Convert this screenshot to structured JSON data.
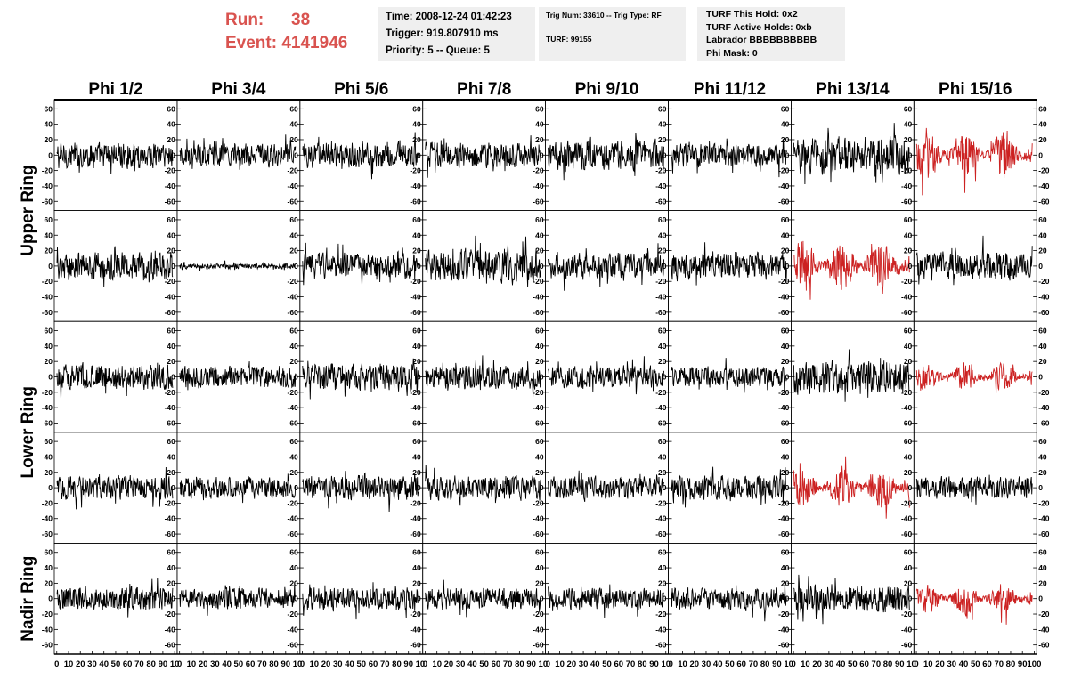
{
  "header": {
    "run_label": "Run:",
    "run_value": "38",
    "event_label": "Event:",
    "event_value": "4141946",
    "time": "Time: 2008-12-24 01:42:23",
    "trigger": "Trigger: 919.807910 ms",
    "priority": "Priority: 5 -- Queue: 5",
    "trig_num": "Trig Num: 33610 -- Trig Type: RF",
    "turf": "TURF: 99155",
    "turf_hold": "TURF This Hold: 0x2",
    "turf_active": "TURF Active Holds: 0xb",
    "labrador": "Labrador BBBBBBBBBB",
    "phi_mask": "Phi Mask: 0"
  },
  "colors": {
    "normal_trace": "#000000",
    "highlight_trace": "#cc2222",
    "header_accent": "#d9534f",
    "info_box": "#efefef"
  },
  "chart_data": {
    "type": "line",
    "columns": [
      "Phi 1/2",
      "Phi 3/4",
      "Phi 5/6",
      "Phi 7/8",
      "Phi 9/10",
      "Phi 11/12",
      "Phi 13/14",
      "Phi 15/16"
    ],
    "ring_labels": [
      {
        "text": "Upper Ring",
        "rows": [
          0,
          1
        ]
      },
      {
        "text": "Lower Ring",
        "rows": [
          2,
          3
        ]
      },
      {
        "text": "Nadir Ring",
        "rows": [
          4
        ]
      }
    ],
    "ylim": [
      -65,
      65
    ],
    "yticks": [
      -60,
      -40,
      -20,
      0,
      20,
      40,
      60
    ],
    "xlim": [
      0,
      100
    ],
    "xtick_labels": [
      "0",
      "10",
      "20",
      "30",
      "40",
      "50",
      "60",
      "70",
      "80",
      "90",
      "10"
    ],
    "last_xtick_labels": [
      "0",
      "10",
      "20",
      "30",
      "40",
      "50",
      "60",
      "70",
      "80",
      "90",
      "100"
    ],
    "samples": 260,
    "highlighted": [
      [
        0,
        7
      ],
      [
        1,
        6
      ],
      [
        2,
        7
      ],
      [
        3,
        6
      ],
      [
        4,
        7
      ]
    ],
    "amplitude": [
      [
        14,
        12,
        14,
        14,
        16,
        12,
        20,
        22
      ],
      [
        15,
        3,
        14,
        18,
        14,
        14,
        22,
        15
      ],
      [
        14,
        12,
        15,
        13,
        12,
        11,
        18,
        12
      ],
      [
        13,
        12,
        13,
        13,
        12,
        13,
        18,
        12
      ],
      [
        13,
        11,
        12,
        12,
        11,
        12,
        15,
        14
      ]
    ]
  }
}
